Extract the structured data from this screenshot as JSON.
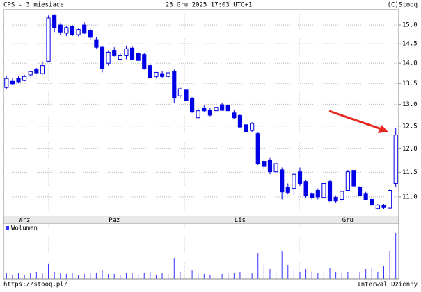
{
  "chart_data": [
    {
      "type": "candlestick",
      "title": "CPS - 3 miesiace",
      "subtitle": "23 Gru 2025 17:03 UTC+1",
      "source": "(C)Stooq",
      "url": "https://stooq.pl/",
      "interval": "Interwal Dzienny",
      "categories": [
        null,
        null,
        null,
        "Wrz",
        null,
        null,
        null,
        null,
        null,
        null,
        null,
        null,
        null,
        null,
        null,
        null,
        null,
        null,
        "Paz",
        null,
        null,
        null,
        null,
        null,
        null,
        null,
        null,
        null,
        null,
        null,
        null,
        null,
        null,
        null,
        null,
        null,
        null,
        null,
        null,
        "Lis",
        null,
        null,
        null,
        null,
        null,
        null,
        null,
        null,
        null,
        null,
        null,
        null,
        null,
        null,
        null,
        null,
        null,
        "Gru",
        null,
        null,
        null,
        null,
        null,
        null,
        null,
        null
      ],
      "series": [
        {
          "up_color": "#ffffff",
          "down_color": "#0000e6",
          "color": "#0000e6",
          "open": [
            13.4,
            13.55,
            13.62,
            13.57,
            13.71,
            13.84,
            13.74,
            14.05,
            15.26,
            15.0,
            14.78,
            14.96,
            14.74,
            15.0,
            14.86,
            14.61,
            14.41,
            14.0,
            14.33,
            14.1,
            14.19,
            14.39,
            14.25,
            14.22,
            13.94,
            13.67,
            13.74,
            13.67,
            13.8,
            13.2,
            13.34,
            13.14,
            12.69,
            12.91,
            12.86,
            12.85,
            12.99,
            12.97,
            12.8,
            12.74,
            12.53,
            12.4,
            12.33,
            11.73,
            11.76,
            11.51,
            11.55,
            11.2,
            11.17,
            11.51,
            11.31,
            11.07,
            11.13,
            10.99,
            11.31,
            10.99,
            10.95,
            11.13,
            11.54,
            11.2,
            11.07,
            10.95,
            10.77,
            10.83,
            10.78,
            11.27
          ],
          "high": [
            13.67,
            13.62,
            13.67,
            13.71,
            13.8,
            13.88,
            14.05,
            15.26,
            15.3,
            15.05,
            14.98,
            15.0,
            14.9,
            15.07,
            14.9,
            14.67,
            14.45,
            14.33,
            14.41,
            14.25,
            14.45,
            14.45,
            14.28,
            14.25,
            14.0,
            13.77,
            13.8,
            13.79,
            13.84,
            13.4,
            13.37,
            13.17,
            12.91,
            12.97,
            12.91,
            12.97,
            13.03,
            12.99,
            12.86,
            12.77,
            12.56,
            12.59,
            12.37,
            11.78,
            11.8,
            11.73,
            11.6,
            11.27,
            11.5,
            11.6,
            11.35,
            11.1,
            11.17,
            11.31,
            11.35,
            11.03,
            11.13,
            11.55,
            11.55,
            11.22,
            11.1,
            10.97,
            10.86,
            10.86,
            11.15,
            12.45
          ],
          "low": [
            13.37,
            13.46,
            13.52,
            13.55,
            13.67,
            13.74,
            13.71,
            14.02,
            14.81,
            14.74,
            14.7,
            14.7,
            14.7,
            14.76,
            14.61,
            14.38,
            13.77,
            13.94,
            14.17,
            14.07,
            14.1,
            14.07,
            14.02,
            13.84,
            13.62,
            13.62,
            13.64,
            13.64,
            13.03,
            13.15,
            13.05,
            12.8,
            12.66,
            12.82,
            12.72,
            12.82,
            12.85,
            12.84,
            12.66,
            12.46,
            12.35,
            12.37,
            11.65,
            11.55,
            11.46,
            11.48,
            10.95,
            11.05,
            11.03,
            11.22,
            10.98,
            10.95,
            10.95,
            10.95,
            10.92,
            10.88,
            10.92,
            11.13,
            11.2,
            11.01,
            10.93,
            10.82,
            10.75,
            10.76,
            10.76,
            11.2
          ],
          "close": [
            13.62,
            13.49,
            13.54,
            13.67,
            13.79,
            13.76,
            13.94,
            15.19,
            14.93,
            14.81,
            14.93,
            14.74,
            14.88,
            14.78,
            14.67,
            14.41,
            13.87,
            14.28,
            14.19,
            14.19,
            14.37,
            14.1,
            14.07,
            13.87,
            13.64,
            13.77,
            13.67,
            13.76,
            13.15,
            13.37,
            13.09,
            12.82,
            12.85,
            12.85,
            12.75,
            12.93,
            12.86,
            12.85,
            12.69,
            12.48,
            12.37,
            12.56,
            11.68,
            11.62,
            11.51,
            11.68,
            11.1,
            11.09,
            11.46,
            11.27,
            11.03,
            10.99,
            11.0,
            11.27,
            10.92,
            10.92,
            11.11,
            11.51,
            11.22,
            11.03,
            10.95,
            10.84,
            10.84,
            10.79,
            11.13,
            12.3
          ]
        }
      ],
      "ylim": [
        10.62,
        15.42
      ],
      "log_scale": true,
      "grid": true,
      "yticks": [
        {
          "value": 11,
          "label": "11.0"
        },
        {
          "value": 11.5,
          "label": "11.5"
        },
        {
          "value": 12,
          "label": "12.0"
        },
        {
          "value": 12.5,
          "label": "12.5"
        },
        {
          "value": 13,
          "label": "13.0"
        },
        {
          "value": 13.5,
          "label": "13.5"
        },
        {
          "value": 14,
          "label": "14.0"
        },
        {
          "value": 14.5,
          "label": "14.5"
        },
        {
          "value": 15,
          "label": "15.0"
        }
      ]
    },
    {
      "type": "bar",
      "series": [
        {
          "name": "Wolumen",
          "color": "#3333ff",
          "values": [
            8,
            6,
            8,
            6,
            8,
            10,
            9,
            22,
            10,
            8,
            7,
            8,
            6,
            7,
            8,
            9,
            12,
            7,
            7,
            6,
            8,
            9,
            7,
            8,
            10,
            6,
            8,
            7,
            30,
            10,
            9,
            12,
            8,
            7,
            6,
            8,
            7,
            8,
            9,
            10,
            12,
            8,
            37,
            20,
            14,
            10,
            40,
            20,
            12,
            10,
            14,
            10,
            8,
            10,
            16,
            10,
            8,
            10,
            12,
            10,
            14,
            16,
            10,
            18,
            40,
            66
          ]
        }
      ],
      "ylim": [
        0,
        80
      ]
    }
  ]
}
